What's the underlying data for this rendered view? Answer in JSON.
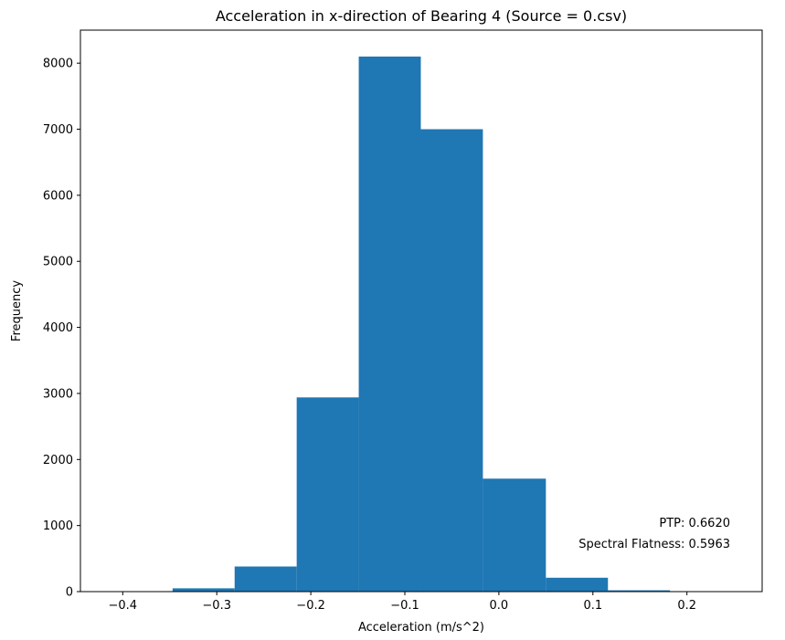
{
  "chart_data": {
    "type": "bar",
    "title": "Acceleration in x-direction of Bearing 4 (Source = 0.csv)",
    "xlabel": "Acceleration (m/s^2)",
    "ylabel": "Frequency",
    "xlim": [
      -0.445,
      0.28
    ],
    "ylim": [
      0,
      8500
    ],
    "xticks": [
      -0.4,
      -0.3,
      -0.2,
      -0.1,
      0.0,
      0.1,
      0.2
    ],
    "xtick_labels": [
      "−0.4",
      "−0.3",
      "−0.2",
      "−0.1",
      "0.0",
      "0.1",
      "0.2"
    ],
    "yticks": [
      0,
      1000,
      2000,
      3000,
      4000,
      5000,
      6000,
      7000,
      8000
    ],
    "ytick_labels": [
      "0",
      "1000",
      "2000",
      "3000",
      "4000",
      "5000",
      "6000",
      "7000",
      "8000"
    ],
    "bins": [
      {
        "x0": -0.414,
        "x1": -0.347,
        "value": 5
      },
      {
        "x0": -0.347,
        "x1": -0.281,
        "value": 50
      },
      {
        "x0": -0.281,
        "x1": -0.215,
        "value": 380
      },
      {
        "x0": -0.215,
        "x1": -0.149,
        "value": 2940
      },
      {
        "x0": -0.149,
        "x1": -0.083,
        "value": 8100
      },
      {
        "x0": -0.083,
        "x1": -0.017,
        "value": 7000
      },
      {
        "x0": -0.017,
        "x1": 0.05,
        "value": 1710
      },
      {
        "x0": 0.05,
        "x1": 0.116,
        "value": 210
      },
      {
        "x0": 0.116,
        "x1": 0.182,
        "value": 20
      },
      {
        "x0": 0.182,
        "x1": 0.248,
        "value": 5
      }
    ],
    "bar_color": "#1f77b4",
    "grid": false,
    "annotations": [
      "PTP: 0.6620",
      "Spectral Flatness: 0.5963"
    ]
  }
}
